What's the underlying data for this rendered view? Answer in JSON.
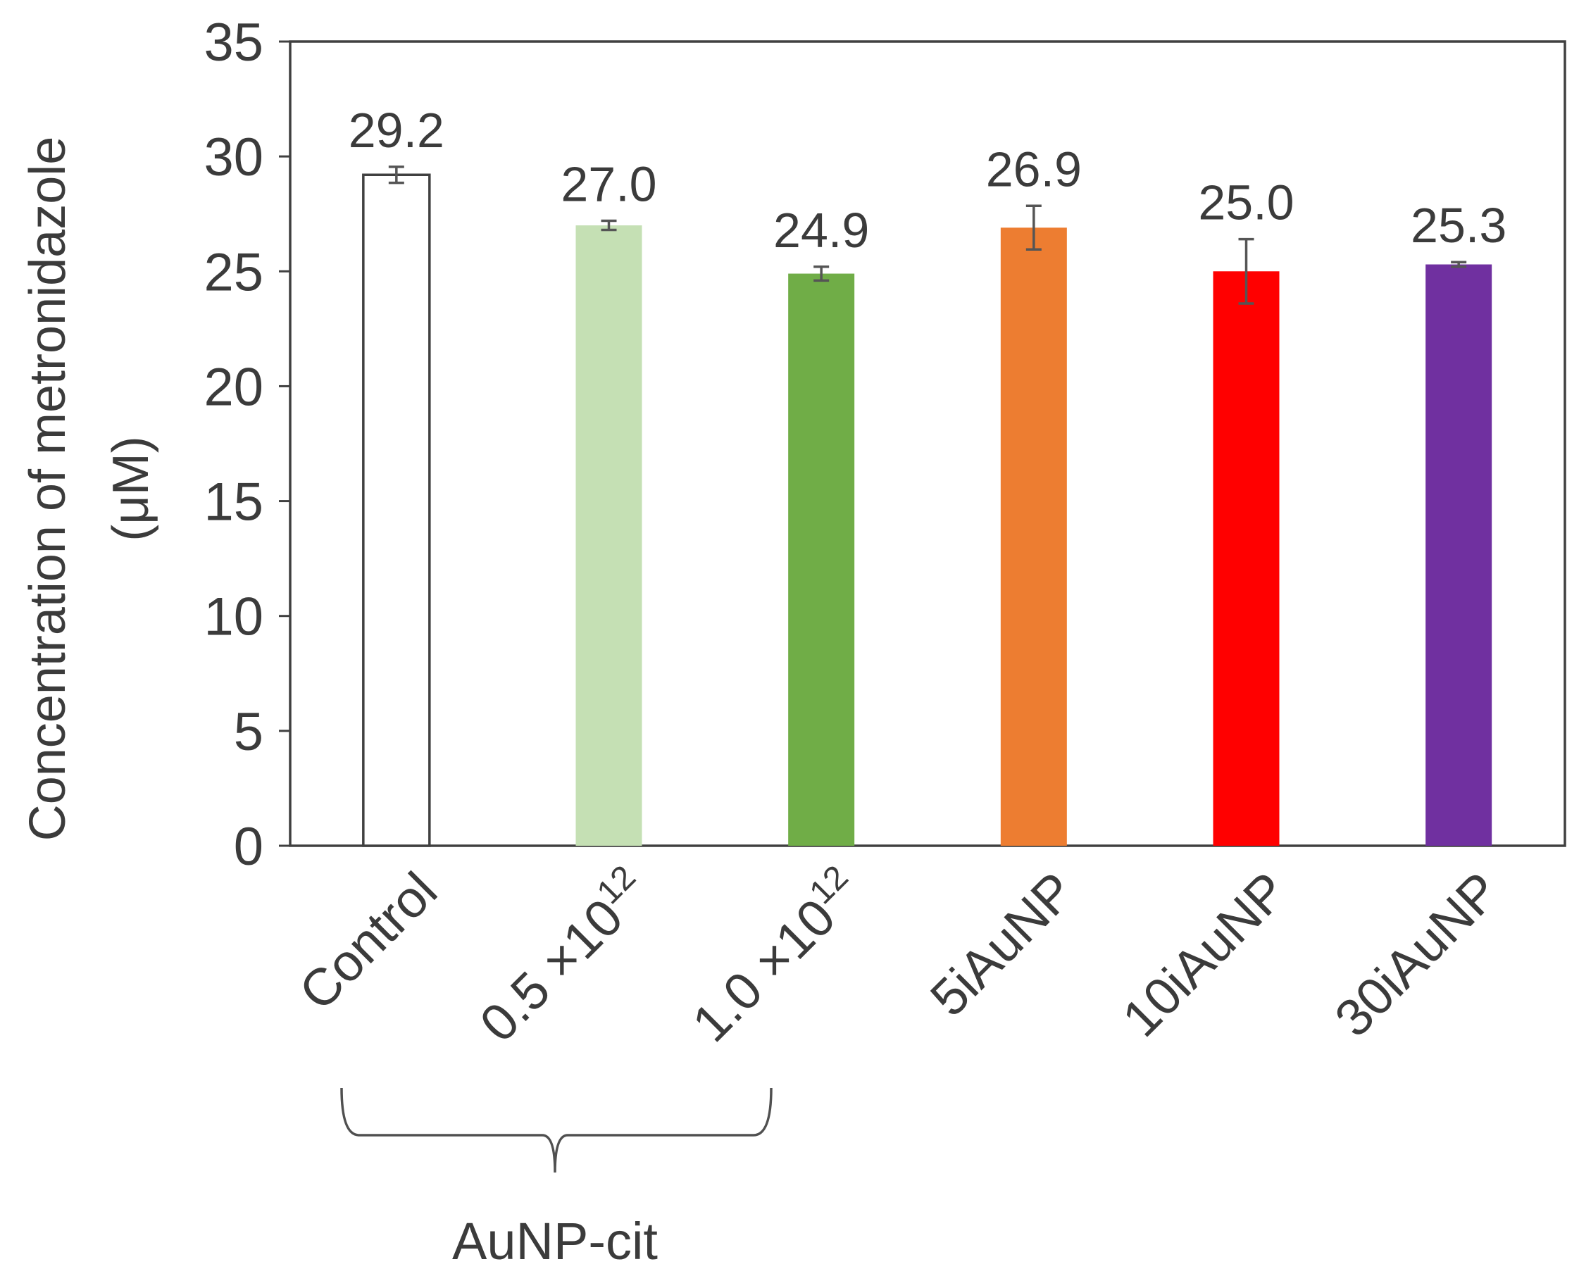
{
  "chart_data": {
    "type": "bar",
    "ylabel_line1": "Concentration of metronidazole",
    "ylabel_line2": "(μM)",
    "ylim": [
      0,
      35
    ],
    "yticks": [
      0,
      5,
      10,
      15,
      20,
      25,
      30,
      35
    ],
    "grid": false,
    "categories": [
      {
        "label": "Control"
      },
      {
        "label": "0.5 ×10",
        "sup": "12"
      },
      {
        "label": "1.0 ×10",
        "sup": "12"
      },
      {
        "label": "5iAuNP"
      },
      {
        "label": "10iAuNP"
      },
      {
        "label": "30iAuNP"
      }
    ],
    "values": [
      29.2,
      27.0,
      24.9,
      26.9,
      25.0,
      25.3
    ],
    "value_labels": [
      "29.2",
      "27.0",
      "24.9",
      "26.9",
      "25.0",
      "25.3"
    ],
    "errors": [
      0.35,
      0.2,
      0.3,
      0.95,
      1.4,
      0.1
    ],
    "colors": [
      "#ffffff",
      "#c5e0b4",
      "#70ad47",
      "#ed7d31",
      "#ff0000",
      "#7030a0"
    ],
    "group_label": "AuNP-cit"
  }
}
